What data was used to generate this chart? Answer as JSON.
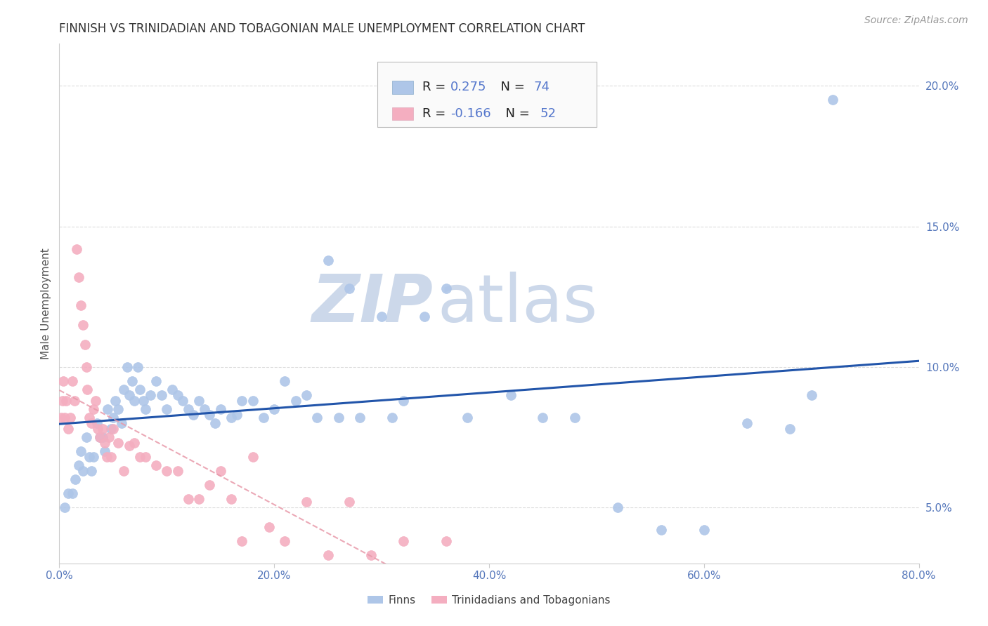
{
  "title": "FINNISH VS TRINIDADIAN AND TOBAGONIAN MALE UNEMPLOYMENT CORRELATION CHART",
  "source": "Source: ZipAtlas.com",
  "ylabel": "Male Unemployment",
  "xlim": [
    0.0,
    0.8
  ],
  "ylim": [
    0.03,
    0.215
  ],
  "watermark_zip": "ZIP",
  "watermark_atlas": "atlas",
  "legend1_r": "0.275",
  "legend1_n": "74",
  "legend2_r": "-0.166",
  "legend2_n": "52",
  "finn_color": "#aec6e8",
  "tnt_color": "#f4aec0",
  "finn_line_color": "#2255aa",
  "tnt_line_color": "#e89aaa",
  "background_color": "#ffffff",
  "grid_color": "#cccccc",
  "axis_color": "#cccccc",
  "title_color": "#333333",
  "tick_color": "#5577bb",
  "ylabel_color": "#555555",
  "watermark_color": "#ccd8ea",
  "legend_text_black": "#222222",
  "legend_text_blue": "#5577cc",
  "finn_scatter_x": [
    0.005,
    0.008,
    0.012,
    0.015,
    0.018,
    0.02,
    0.022,
    0.025,
    0.028,
    0.03,
    0.032,
    0.035,
    0.038,
    0.04,
    0.042,
    0.045,
    0.048,
    0.05,
    0.052,
    0.055,
    0.058,
    0.06,
    0.063,
    0.065,
    0.068,
    0.07,
    0.073,
    0.075,
    0.078,
    0.08,
    0.085,
    0.09,
    0.095,
    0.1,
    0.105,
    0.11,
    0.115,
    0.12,
    0.125,
    0.13,
    0.135,
    0.14,
    0.145,
    0.15,
    0.16,
    0.165,
    0.17,
    0.18,
    0.19,
    0.2,
    0.21,
    0.22,
    0.23,
    0.24,
    0.25,
    0.26,
    0.27,
    0.28,
    0.3,
    0.31,
    0.32,
    0.34,
    0.36,
    0.38,
    0.42,
    0.45,
    0.48,
    0.52,
    0.56,
    0.6,
    0.64,
    0.68,
    0.7,
    0.72
  ],
  "finn_scatter_y": [
    0.05,
    0.055,
    0.055,
    0.06,
    0.065,
    0.07,
    0.063,
    0.075,
    0.068,
    0.063,
    0.068,
    0.08,
    0.075,
    0.075,
    0.07,
    0.085,
    0.078,
    0.082,
    0.088,
    0.085,
    0.08,
    0.092,
    0.1,
    0.09,
    0.095,
    0.088,
    0.1,
    0.092,
    0.088,
    0.085,
    0.09,
    0.095,
    0.09,
    0.085,
    0.092,
    0.09,
    0.088,
    0.085,
    0.083,
    0.088,
    0.085,
    0.083,
    0.08,
    0.085,
    0.082,
    0.083,
    0.088,
    0.088,
    0.082,
    0.085,
    0.095,
    0.088,
    0.09,
    0.082,
    0.138,
    0.082,
    0.128,
    0.082,
    0.118,
    0.082,
    0.088,
    0.118,
    0.128,
    0.082,
    0.09,
    0.082,
    0.082,
    0.05,
    0.042,
    0.042,
    0.08,
    0.078,
    0.09,
    0.195
  ],
  "tnt_scatter_x": [
    0.002,
    0.003,
    0.004,
    0.005,
    0.006,
    0.008,
    0.01,
    0.012,
    0.014,
    0.016,
    0.018,
    0.02,
    0.022,
    0.024,
    0.025,
    0.026,
    0.028,
    0.03,
    0.032,
    0.034,
    0.036,
    0.038,
    0.04,
    0.042,
    0.044,
    0.046,
    0.048,
    0.05,
    0.055,
    0.06,
    0.065,
    0.07,
    0.075,
    0.08,
    0.09,
    0.1,
    0.11,
    0.12,
    0.13,
    0.14,
    0.15,
    0.16,
    0.17,
    0.18,
    0.195,
    0.21,
    0.23,
    0.25,
    0.27,
    0.29,
    0.32,
    0.36
  ],
  "tnt_scatter_y": [
    0.082,
    0.088,
    0.095,
    0.082,
    0.088,
    0.078,
    0.082,
    0.095,
    0.088,
    0.142,
    0.132,
    0.122,
    0.115,
    0.108,
    0.1,
    0.092,
    0.082,
    0.08,
    0.085,
    0.088,
    0.078,
    0.075,
    0.078,
    0.073,
    0.068,
    0.075,
    0.068,
    0.078,
    0.073,
    0.063,
    0.072,
    0.073,
    0.068,
    0.068,
    0.065,
    0.063,
    0.063,
    0.053,
    0.053,
    0.058,
    0.063,
    0.053,
    0.038,
    0.068,
    0.043,
    0.038,
    0.052,
    0.033,
    0.052,
    0.033,
    0.038,
    0.038
  ]
}
